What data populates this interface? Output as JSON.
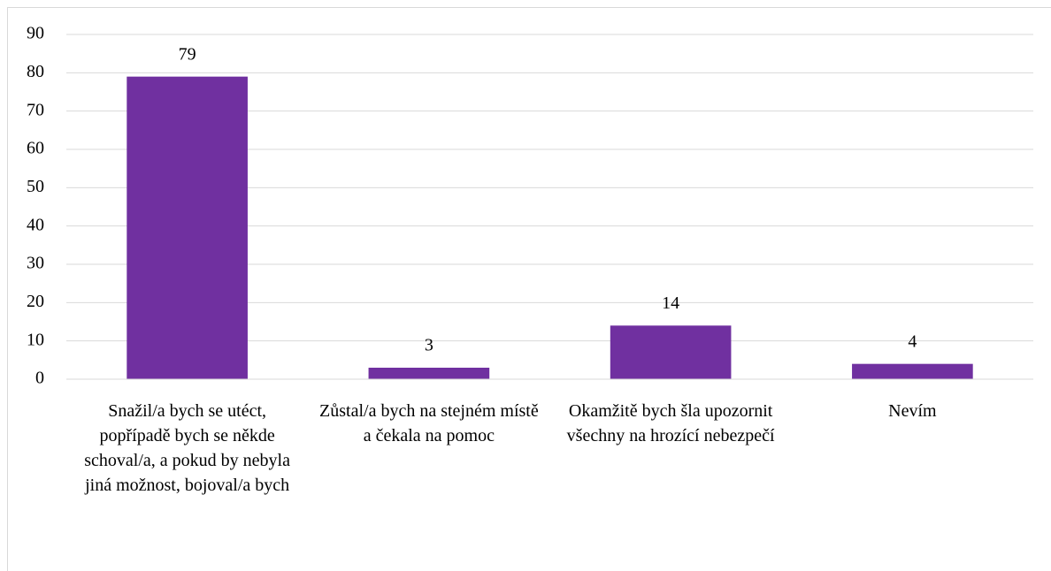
{
  "chart_data": {
    "type": "bar",
    "categories": [
      "Snažil/a bych se utéct, popřípadě bych se někde schoval/a, a pokud by nebyla jiná možnost, bojoval/a bych",
      "Zůstal/a bych na stejném místě a čekala na pomoc",
      "Okamžitě bych šla upozornit všechny na hrozící nebezpečí",
      "Nevím"
    ],
    "values": [
      79,
      3,
      14,
      4
    ],
    "color": "#7030a0",
    "ylim": [
      0,
      90
    ],
    "yticks": [
      0,
      10,
      20,
      30,
      40,
      50,
      60,
      70,
      80,
      90
    ],
    "grid": true
  }
}
